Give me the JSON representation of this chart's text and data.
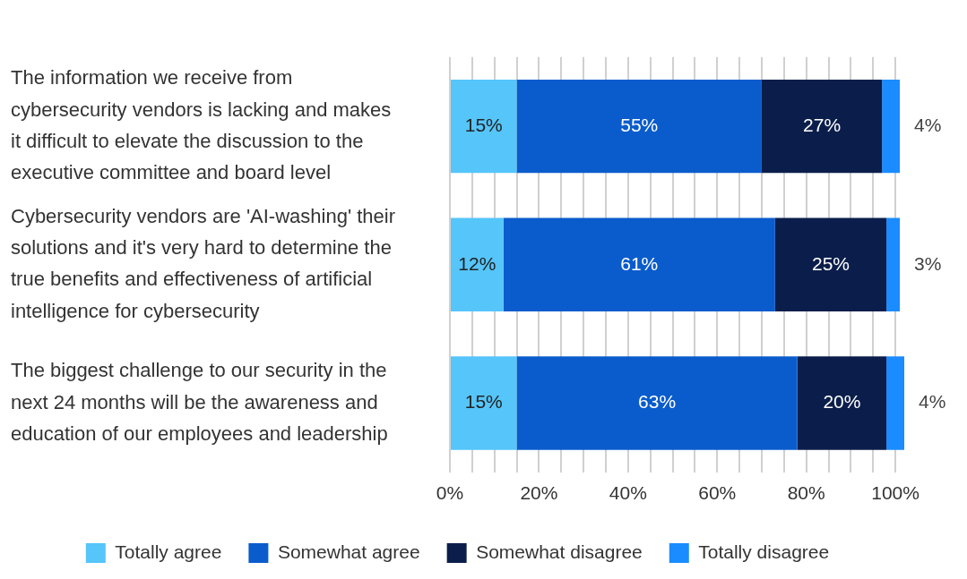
{
  "chart_data": {
    "type": "bar",
    "orientation": "horizontal",
    "stacked": true,
    "categories": [
      "The information we receive from cybersecurity vendors is lacking and makes it difficult to elevate the discussion to the executive committee and board level",
      "Cybersecurity vendors are 'AI-washing' their solutions and it's very hard to determine the true benefits and effectiveness of artificial intelligence for cybersecurity",
      "The biggest challenge to our security in the next 24 months will be the awareness and education of our employees and leadership"
    ],
    "series": [
      {
        "name": "Totally agree",
        "color": "#55c5fa",
        "values": [
          15,
          12,
          15
        ],
        "value_labels": [
          "15%",
          "12%",
          "15%"
        ]
      },
      {
        "name": "Somewhat agree",
        "color": "#0a5ccc",
        "values": [
          55,
          61,
          63
        ],
        "value_labels": [
          "55%",
          "61%",
          "63%"
        ]
      },
      {
        "name": "Somewhat disagree",
        "color": "#0b1e4b",
        "values": [
          27,
          25,
          20
        ],
        "value_labels": [
          "27%",
          "25%",
          "20%"
        ]
      },
      {
        "name": "Totally disagree",
        "color": "#1a8cff",
        "values": [
          4,
          3,
          4
        ],
        "value_labels": [
          "4%",
          "3%",
          "4%"
        ]
      }
    ],
    "xlim": [
      0,
      102
    ],
    "xticks": [
      {
        "value": 0,
        "label": "0%"
      },
      {
        "value": 5,
        "label": null
      },
      {
        "value": 10,
        "label": null
      },
      {
        "value": 15,
        "label": null
      },
      {
        "value": 20,
        "label": "20%"
      },
      {
        "value": 25,
        "label": null
      },
      {
        "value": 30,
        "label": null
      },
      {
        "value": 35,
        "label": null
      },
      {
        "value": 40,
        "label": "40%"
      },
      {
        "value": 45,
        "label": null
      },
      {
        "value": 50,
        "label": null
      },
      {
        "value": 55,
        "label": null
      },
      {
        "value": 60,
        "label": "60%"
      },
      {
        "value": 65,
        "label": null
      },
      {
        "value": 70,
        "label": null
      },
      {
        "value": 75,
        "label": null
      },
      {
        "value": 80,
        "label": "80%"
      },
      {
        "value": 85,
        "label": null
      },
      {
        "value": 90,
        "label": null
      },
      {
        "value": 95,
        "label": null
      },
      {
        "value": 100,
        "label": "100%"
      }
    ],
    "grid": "x",
    "legend": "bottom"
  }
}
